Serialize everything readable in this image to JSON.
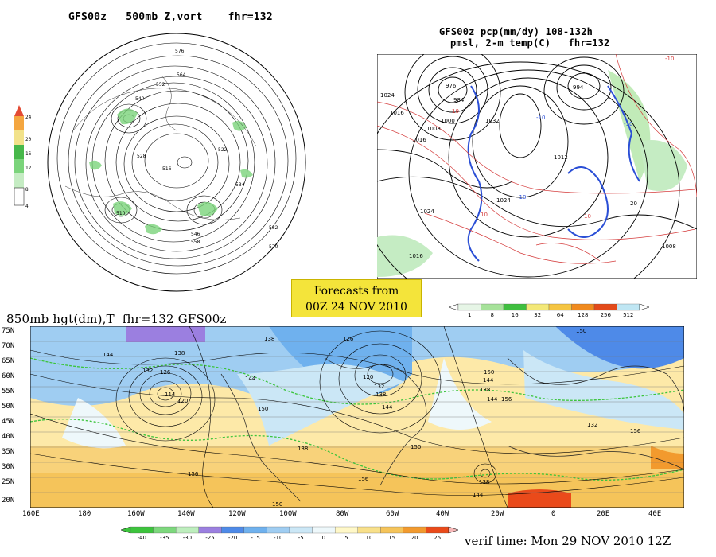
{
  "polar_map": {
    "title": "GFS00z   500mb Z,vort    fhr=132",
    "colorbar_labels": [
      "24",
      "20",
      "16",
      "12",
      "8",
      "4"
    ],
    "colorbar_colors": [
      "#e34a33",
      "#f4a640",
      "#f2e28a",
      "#47b84a",
      "#7bd47b",
      "#c5ecc3"
    ],
    "contour_labels": [
      "576",
      "564",
      "552",
      "540",
      "528",
      "516",
      "522",
      "534",
      "546",
      "558",
      "570",
      "582",
      "510"
    ]
  },
  "na_map": {
    "title_line1": "GFS00z pcp(mm/dy) 108-132h",
    "title_line2": "pmsl, 2-m temp(C)   fhr=132",
    "pressure_labels": [
      "1024",
      "1016",
      "1008",
      "1000",
      "976",
      "984",
      "1032",
      "1024",
      "1016",
      "1012",
      "994",
      "1008",
      "1016",
      "1024"
    ],
    "temp_labels": [
      "-10",
      "-10",
      "-10",
      "10",
      "10",
      "10",
      "-10",
      "20"
    ]
  },
  "badge": {
    "line1": "Forecasts from",
    "line2": "00Z 24 NOV 2010"
  },
  "pcp_colorbar": {
    "labels": [
      "1",
      "8",
      "16",
      "32",
      "64",
      "128",
      "256",
      "512"
    ],
    "colors": [
      "#e6f5e6",
      "#a6e29a",
      "#3fbf3f",
      "#f3e878",
      "#f5c542",
      "#f08a1e",
      "#e34a1a",
      "#bfe6f3"
    ]
  },
  "wide_map": {
    "title": "850mb hgt(dm),T  fhr=132 GFS00z",
    "lat_labels": [
      "75N",
      "70N",
      "65N",
      "60N",
      "55N",
      "50N",
      "45N",
      "40N",
      "35N",
      "30N",
      "25N",
      "20N"
    ],
    "lon_labels": [
      "160E",
      "180",
      "160W",
      "140W",
      "120W",
      "100W",
      "80W",
      "60W",
      "40W",
      "20W",
      "0",
      "20E",
      "40E"
    ],
    "height_labels": [
      "144",
      "138",
      "132",
      "126",
      "114",
      "120",
      "138",
      "126",
      "120",
      "144",
      "132",
      "138",
      "144",
      "150",
      "138",
      "150",
      "144",
      "150",
      "156",
      "138",
      "156",
      "132",
      "150",
      "144",
      "156",
      "138",
      "144",
      "156",
      "150"
    ]
  },
  "temp_colorbar": {
    "labels": [
      "-40",
      "-35",
      "-30",
      "-25",
      "-20",
      "-15",
      "-10",
      "-5",
      "0",
      "5",
      "10",
      "15",
      "20",
      "25"
    ],
    "colors": [
      "#3cc43c",
      "#7dd87d",
      "#bdeebd",
      "#9b7fe0",
      "#4e8ae8",
      "#6fb1ee",
      "#9fcdf2",
      "#cbe7f6",
      "#eef8fb",
      "#fff8c8",
      "#f8e08a",
      "#f5c45a",
      "#f29a2e",
      "#ea4a1a"
    ]
  },
  "verif": "verif time: Mon 29 NOV 2010 12Z"
}
